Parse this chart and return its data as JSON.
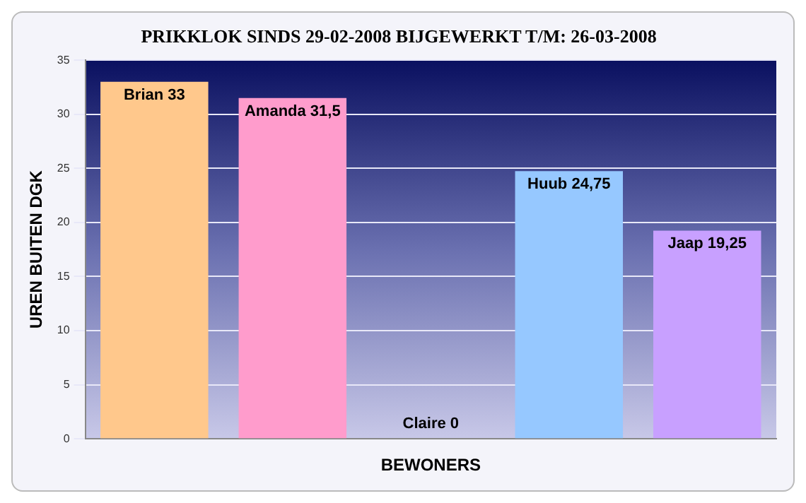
{
  "chart_data": {
    "type": "bar",
    "title": "PRIKKLOK SINDS 29-02-2008 BIJGEWERKT T/M: 26-03-2008",
    "xlabel": "BEWONERS",
    "ylabel": "UREN BUITEN DGK",
    "categories": [
      null,
      null,
      null,
      null,
      null
    ],
    "values": [
      33,
      31.5,
      0,
      24.75,
      19.25
    ],
    "colors": [
      "#ffc88c",
      "#ff9ccc",
      "#c8c8f0",
      "#96c8ff",
      "#c8a0ff"
    ],
    "value_labels": [
      "Brian 33",
      "Amanda 31,5",
      "Claire 0",
      "Huub 24,75",
      "Jaap 19,25"
    ],
    "ylim": [
      0,
      35
    ],
    "yticks": [
      0,
      5,
      10,
      15,
      20,
      25,
      30,
      35
    ],
    "grid": "y",
    "legend": false
  }
}
